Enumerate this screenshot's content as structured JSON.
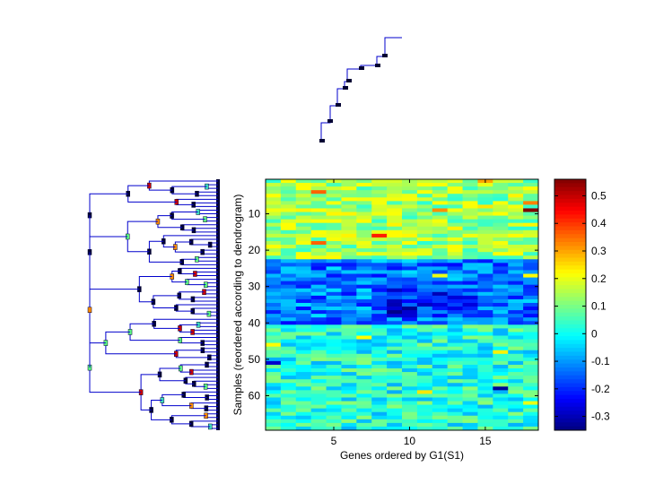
{
  "chart_data": {
    "type": "heatmap",
    "title": "",
    "xlabel": "Genes ordered by G1(S1)",
    "ylabel": "Samples (reordered according to dendrogram)",
    "n_cols": 18,
    "n_rows": 69,
    "x_ticks": [
      5,
      10,
      15
    ],
    "y_ticks": [
      10,
      20,
      30,
      40,
      50,
      60
    ],
    "colormap": "jet",
    "clim": [
      -0.35,
      0.56
    ],
    "colorbar_ticks": [
      0.5,
      0.4,
      0.3,
      0.2,
      0.1,
      0,
      -0.1,
      -0.2,
      -0.3
    ],
    "colorbar_tick_labels": [
      "0.5",
      "0.4",
      "0.3",
      "0.2",
      "0.1",
      "0",
      "-0.1",
      "-0.2",
      "-0.3"
    ],
    "top_dendrogram": {
      "description_nodes": 10,
      "line_color": "#0000cc",
      "node_color": "#000033"
    },
    "left_dendrogram": {
      "leaves": 69,
      "line_color": "#0000cc"
    },
    "seed": 7
  },
  "colors": {
    "dendrogram_line": "#0000cc",
    "node_dark": "#000033",
    "axis": "#000000"
  }
}
